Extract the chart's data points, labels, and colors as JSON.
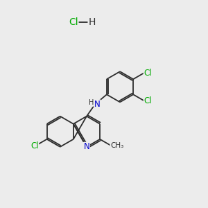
{
  "background_color": "#ececec",
  "bond_color": "#2d2d2d",
  "atom_colors": {
    "Cl": "#00aa00",
    "N": "#0000cc",
    "H": "#2d2d2d",
    "C": "#2d2d2d"
  },
  "bond_lw": 1.3,
  "font_size": 8.5
}
